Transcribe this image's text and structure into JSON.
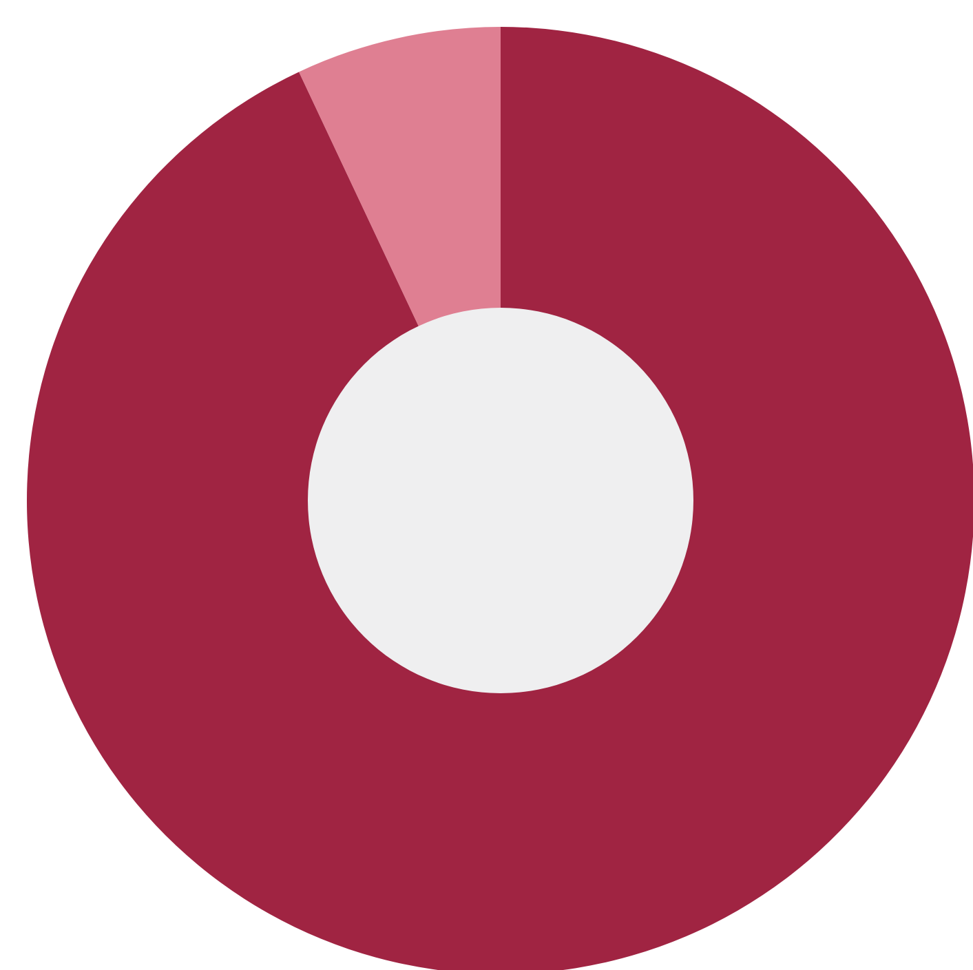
{
  "chart_data": {
    "type": "pie",
    "style": "donut",
    "slices": [
      {
        "value": 93,
        "color": "#a02442"
      },
      {
        "value": 7,
        "color": "#df7f92"
      }
    ],
    "center_color": "#efeff0",
    "title": "",
    "legend": "none",
    "data_labels": "none"
  }
}
